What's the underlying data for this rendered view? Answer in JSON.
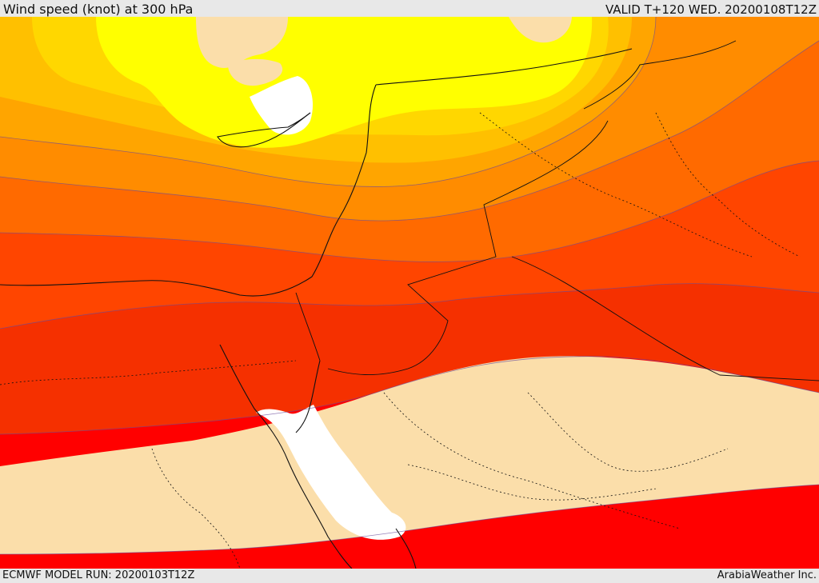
{
  "header": {
    "title": "Wind speed (knot) at 300 hPa",
    "valid": "VALID T+120 WED. 20200108T12Z"
  },
  "footer": {
    "model_run": "ECMWF MODEL RUN: 20200103T12Z",
    "brand": "ArabiaWeather Inc."
  },
  "map": {
    "colors": {
      "lightest": "#fbdeaa",
      "yellow": "#ffff00",
      "gold": "#ffd700",
      "amber": "#ffc000",
      "orange_light": "#ffa500",
      "orange": "#ff8c00",
      "orange_dark": "#ff6a00",
      "red_orange": "#ff4500",
      "red_dark": "#f53000",
      "red": "#ff0000",
      "sea": "#ffffff"
    }
  }
}
